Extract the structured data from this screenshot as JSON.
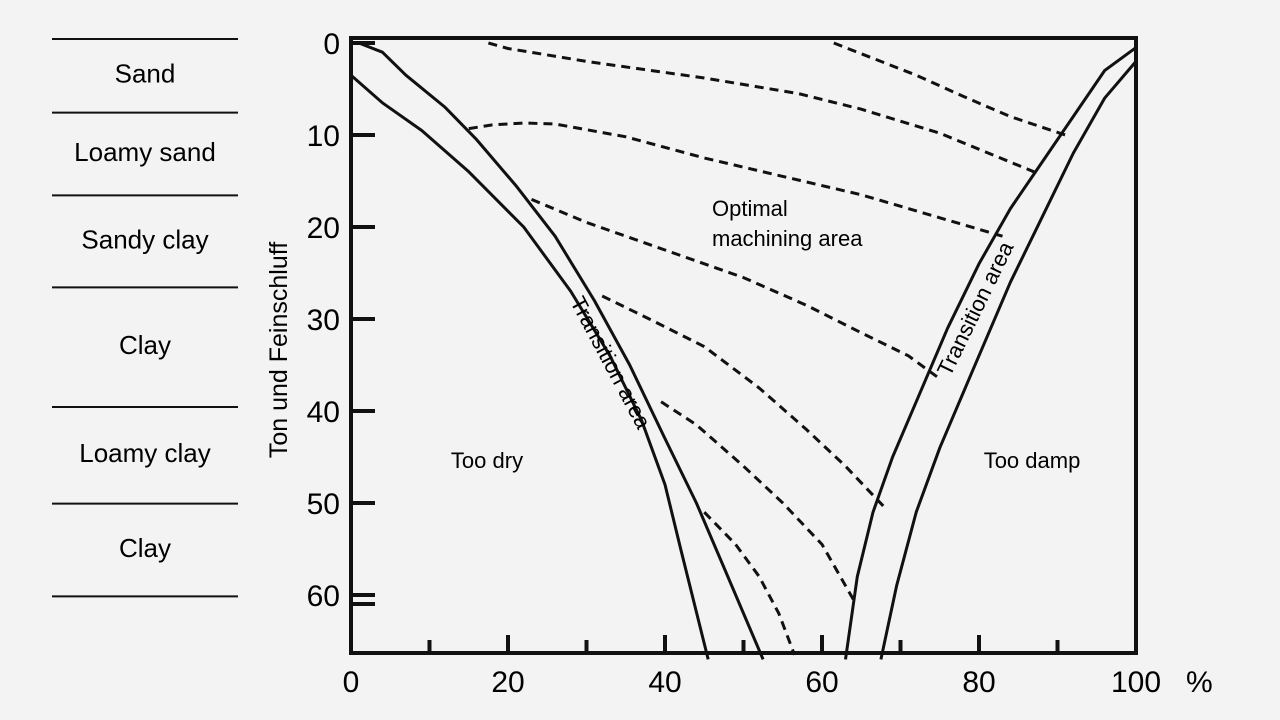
{
  "soil_classes": [
    "Sand",
    "Loamy sand",
    "Sandy clay",
    "Clay",
    "Loamy clay",
    "Clay"
  ],
  "soil_class_boundaries": [
    0,
    8,
    17,
    27,
    40,
    50.5,
    62
  ],
  "chart_data": {
    "type": "line",
    "title": "",
    "xlabel": "",
    "x_unit": "%",
    "ylabel": "Ton und Feinschluff",
    "xlim": [
      0,
      100
    ],
    "ylim": [
      0,
      67
    ],
    "y_inverted": true,
    "x_ticks": [
      0,
      20,
      40,
      60,
      80,
      100
    ],
    "x_minor_ticks": [
      10,
      30,
      50,
      70,
      90
    ],
    "y_ticks": [
      0,
      10,
      20,
      30,
      40,
      50,
      60
    ],
    "region_labels": {
      "too_dry": "Too dry",
      "too_damp": "Too damp",
      "optimal_line1": "Optimal",
      "optimal_line2": "machining area",
      "transition_left": "Transition area",
      "transition_right": "Transition area"
    },
    "boundaries": [
      {
        "points": [
          [
            0,
            3.5
          ],
          [
            4,
            6.5
          ],
          [
            9,
            9.5
          ],
          [
            15,
            14
          ],
          [
            22,
            20
          ],
          [
            28,
            27
          ],
          [
            33,
            34
          ],
          [
            37,
            41
          ],
          [
            40,
            48
          ],
          [
            42,
            55
          ],
          [
            45.5,
            67
          ]
        ]
      },
      {
        "points": [
          [
            1,
            0
          ],
          [
            4,
            1
          ],
          [
            7,
            3.5
          ],
          [
            12,
            7
          ],
          [
            16,
            10.5
          ],
          [
            21,
            15.5
          ],
          [
            26,
            21
          ],
          [
            31,
            28
          ],
          [
            35.5,
            35
          ],
          [
            40,
            43
          ],
          [
            44,
            50
          ],
          [
            47.5,
            57
          ],
          [
            52.5,
            67
          ]
        ]
      },
      {
        "points": [
          [
            63,
            67
          ],
          [
            64.5,
            58
          ],
          [
            66.5,
            51
          ],
          [
            69,
            45
          ],
          [
            72,
            39
          ],
          [
            76,
            31
          ],
          [
            80,
            24
          ],
          [
            84,
            18
          ],
          [
            88,
            13
          ],
          [
            92,
            8
          ],
          [
            96,
            3
          ],
          [
            100,
            0.5
          ]
        ]
      },
      {
        "points": [
          [
            67.5,
            67
          ],
          [
            69.5,
            59
          ],
          [
            72,
            51
          ],
          [
            75,
            44
          ],
          [
            79,
            36
          ],
          [
            84,
            26
          ],
          [
            88,
            19
          ],
          [
            92,
            12
          ],
          [
            96,
            6
          ],
          [
            100,
            2
          ]
        ]
      }
    ],
    "dashed_lines": [
      {
        "points": [
          [
            17.5,
            0
          ],
          [
            20,
            0.6
          ],
          [
            30,
            2
          ],
          [
            45,
            3.8
          ],
          [
            57,
            5.5
          ],
          [
            65,
            7.2
          ],
          [
            75,
            9.8
          ],
          [
            87,
            14
          ]
        ]
      },
      {
        "points": [
          [
            61.5,
            0
          ],
          [
            66,
            1.5
          ],
          [
            72,
            3.5
          ],
          [
            78,
            5.8
          ],
          [
            84,
            8
          ],
          [
            91,
            10
          ]
        ]
      },
      {
        "points": [
          [
            15,
            9.3
          ],
          [
            18,
            8.9
          ],
          [
            22,
            8.7
          ],
          [
            26,
            8.8
          ],
          [
            35,
            10.2
          ],
          [
            45,
            12.5
          ],
          [
            55,
            14.5
          ],
          [
            65,
            16.5
          ],
          [
            75,
            19
          ],
          [
            83,
            21
          ]
        ]
      },
      {
        "points": [
          [
            23,
            17
          ],
          [
            30,
            19.5
          ],
          [
            40,
            22.5
          ],
          [
            50,
            25.5
          ],
          [
            58,
            28.5
          ],
          [
            65,
            31.5
          ],
          [
            71,
            34
          ],
          [
            75,
            36.5
          ]
        ]
      },
      {
        "points": [
          [
            32,
            27.5
          ],
          [
            38,
            30
          ],
          [
            45,
            33
          ],
          [
            52,
            37.5
          ],
          [
            58,
            42
          ],
          [
            63,
            46
          ],
          [
            68,
            50.5
          ]
        ]
      },
      {
        "points": [
          [
            39.5,
            39
          ],
          [
            44,
            41.5
          ],
          [
            50,
            46
          ],
          [
            55,
            50
          ],
          [
            60,
            54.5
          ],
          [
            64,
            60.5
          ]
        ]
      },
      {
        "points": [
          [
            45,
            51
          ],
          [
            49,
            54.5
          ],
          [
            52,
            58
          ],
          [
            54.5,
            62
          ],
          [
            56.5,
            66.5
          ]
        ]
      }
    ]
  }
}
